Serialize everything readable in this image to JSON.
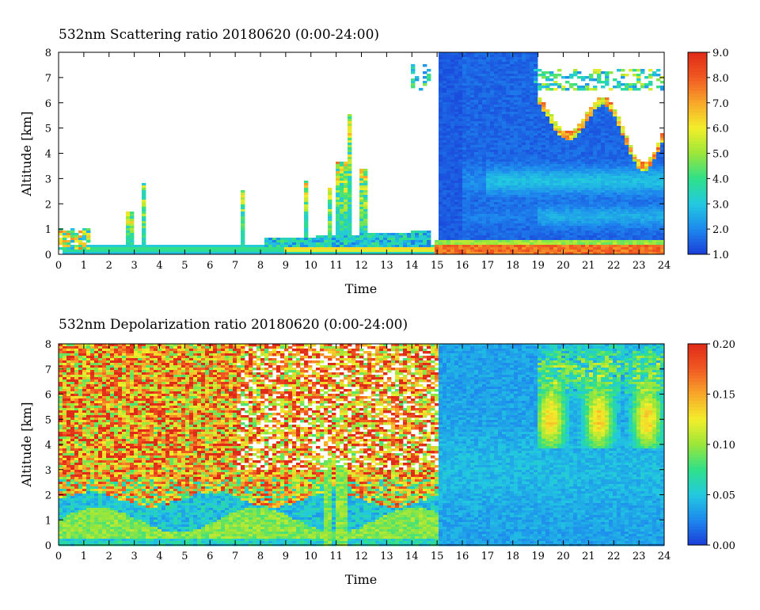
{
  "colors": {
    "colormap": [
      "#1a3cd8",
      "#1e88ee",
      "#22c8e0",
      "#2ee08a",
      "#9ae63a",
      "#f2ee2a",
      "#f8a82a",
      "#f05a22",
      "#e02a18"
    ],
    "background": "#ffffff"
  },
  "chart_data": [
    {
      "type": "heatmap",
      "title": "532nm Scattering ratio  20180620 (0:00-24:00)",
      "xlabel": "Time",
      "ylabel": "Altitude [km]",
      "xlim": [
        0,
        24
      ],
      "ylim": [
        0,
        8
      ],
      "x_ticks": [
        "0",
        "1",
        "2",
        "3",
        "4",
        "5",
        "6",
        "7",
        "8",
        "9",
        "10",
        "11",
        "12",
        "13",
        "14",
        "15",
        "16",
        "17",
        "18",
        "19",
        "20",
        "21",
        "22",
        "23",
        "24"
      ],
      "y_ticks": [
        "0",
        "1",
        "2",
        "3",
        "4",
        "5",
        "6",
        "7",
        "8"
      ],
      "colorbar": {
        "range": [
          1.0,
          9.0
        ],
        "ticks": [
          "1.0",
          "2.0",
          "3.0",
          "4.0",
          "5.0",
          "6.0",
          "7.0",
          "8.0",
          "9.0"
        ]
      }
    },
    {
      "type": "heatmap",
      "title": "532nm Depolarization ratio  20180620 (0:00-24:00)",
      "xlabel": "Time",
      "ylabel": "Altitude [km]",
      "xlim": [
        0,
        24
      ],
      "ylim": [
        0,
        8
      ],
      "x_ticks": [
        "0",
        "1",
        "2",
        "3",
        "4",
        "5",
        "6",
        "7",
        "8",
        "9",
        "10",
        "11",
        "12",
        "13",
        "14",
        "15",
        "16",
        "17",
        "18",
        "19",
        "20",
        "21",
        "22",
        "23",
        "24"
      ],
      "y_ticks": [
        "0",
        "1",
        "2",
        "3",
        "4",
        "5",
        "6",
        "7",
        "8"
      ],
      "colorbar": {
        "range": [
          0.0,
          0.2
        ],
        "ticks": [
          "0.00",
          "0.05",
          "0.10",
          "0.15",
          "0.20"
        ]
      }
    }
  ]
}
